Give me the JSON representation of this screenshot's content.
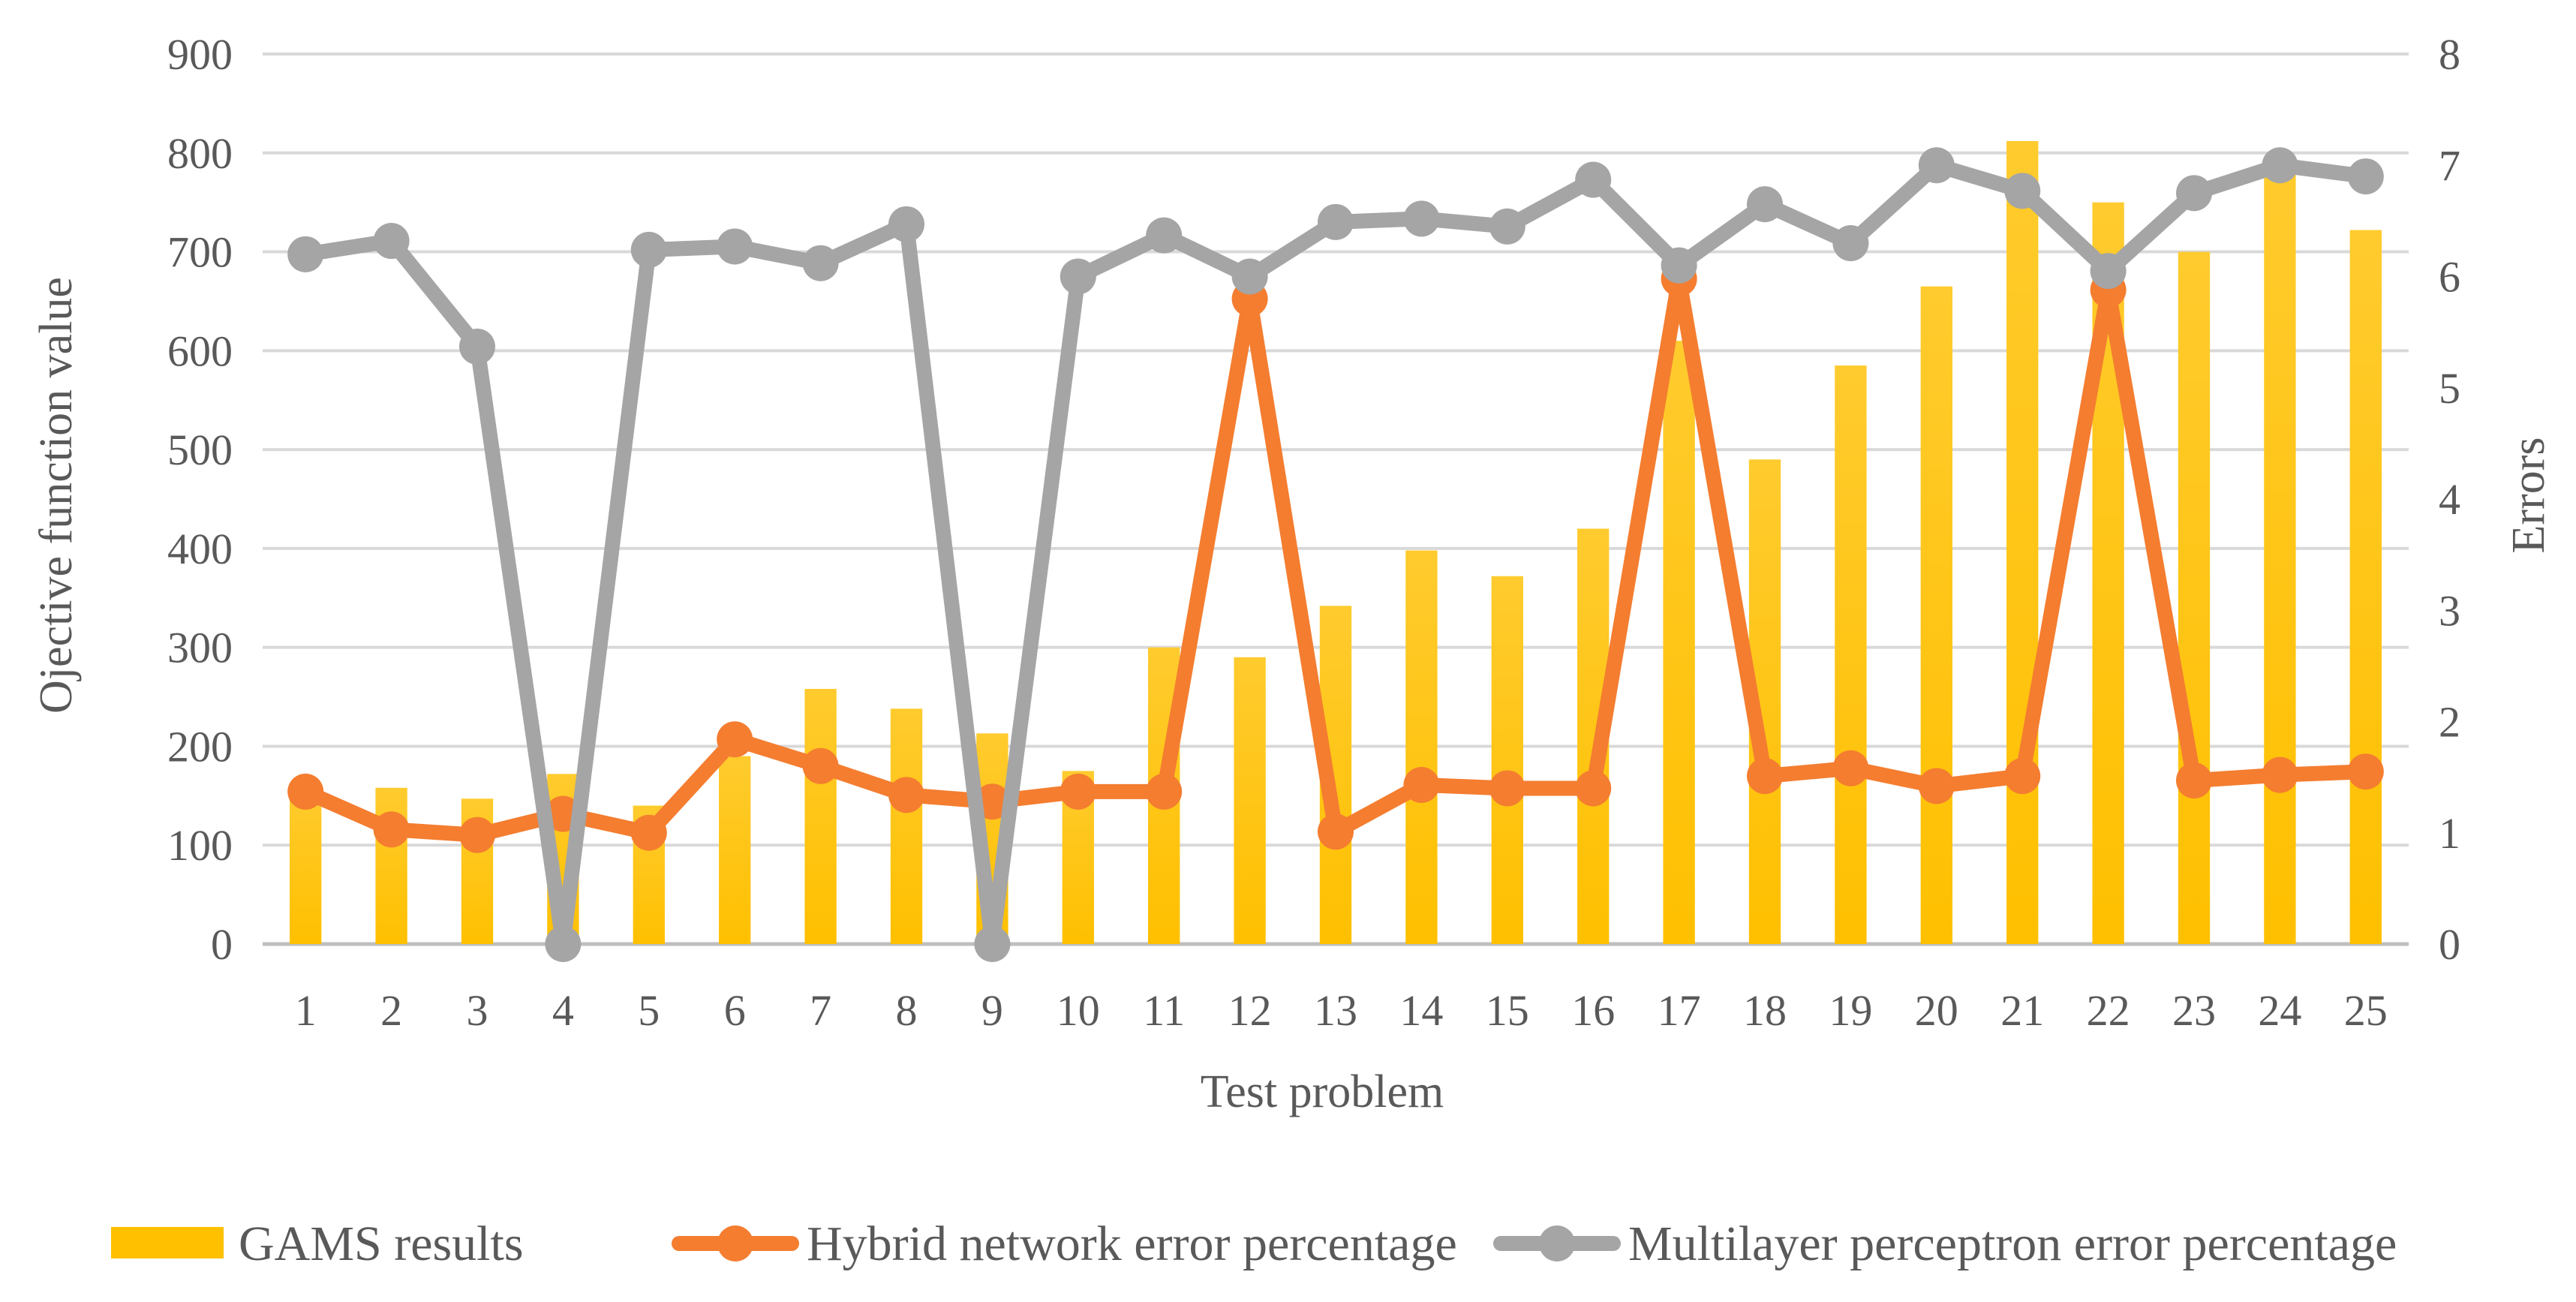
{
  "chart_data": {
    "type": "bar",
    "categories": [
      "1",
      "2",
      "3",
      "4",
      "5",
      "6",
      "7",
      "8",
      "9",
      "10",
      "11",
      "12",
      "13",
      "14",
      "15",
      "16",
      "17",
      "18",
      "19",
      "20",
      "21",
      "22",
      "23",
      "24",
      "25"
    ],
    "xlabel": "Test problem",
    "ylabel": "Ojective function value",
    "y2label": "Errors",
    "ylim": [
      0,
      900
    ],
    "y2lim": [
      0,
      8
    ],
    "yticks": [
      "0",
      "100",
      "200",
      "300",
      "400",
      "500",
      "600",
      "700",
      "800",
      "900"
    ],
    "y2ticks": [
      "0",
      "1",
      "2",
      "3",
      "4",
      "5",
      "6",
      "7",
      "8"
    ],
    "grid": true,
    "legend_position": "bottom",
    "series": [
      {
        "name": "GAMS results",
        "type": "bar",
        "axis": "left",
        "color": "#FFC000",
        "values": [
          155,
          158,
          147,
          172,
          140,
          190,
          258,
          238,
          213,
          175,
          300,
          290,
          342,
          398,
          372,
          420,
          610,
          490,
          585,
          665,
          812,
          750,
          700,
          790,
          722
        ]
      },
      {
        "name": "Hybrid network error percentage",
        "type": "line",
        "axis": "right",
        "color": "#F47D30",
        "values": [
          1.37,
          1.03,
          0.98,
          1.17,
          1.0,
          1.84,
          1.6,
          1.34,
          1.28,
          1.37,
          1.37,
          5.8,
          1.01,
          1.43,
          1.4,
          1.4,
          5.98,
          1.51,
          1.58,
          1.42,
          1.51,
          5.88,
          1.47,
          1.52,
          1.55
        ]
      },
      {
        "name": "Multilayer perceptron error percentage",
        "type": "line",
        "axis": "right",
        "color": "#A5A5A5",
        "values": [
          6.2,
          6.32,
          5.37,
          0.0,
          6.24,
          6.27,
          6.12,
          6.47,
          0.0,
          6.0,
          6.37,
          6.0,
          6.49,
          6.52,
          6.45,
          6.87,
          6.1,
          6.65,
          6.3,
          7.0,
          6.77,
          6.05,
          6.75,
          7.0,
          6.9
        ]
      }
    ]
  }
}
